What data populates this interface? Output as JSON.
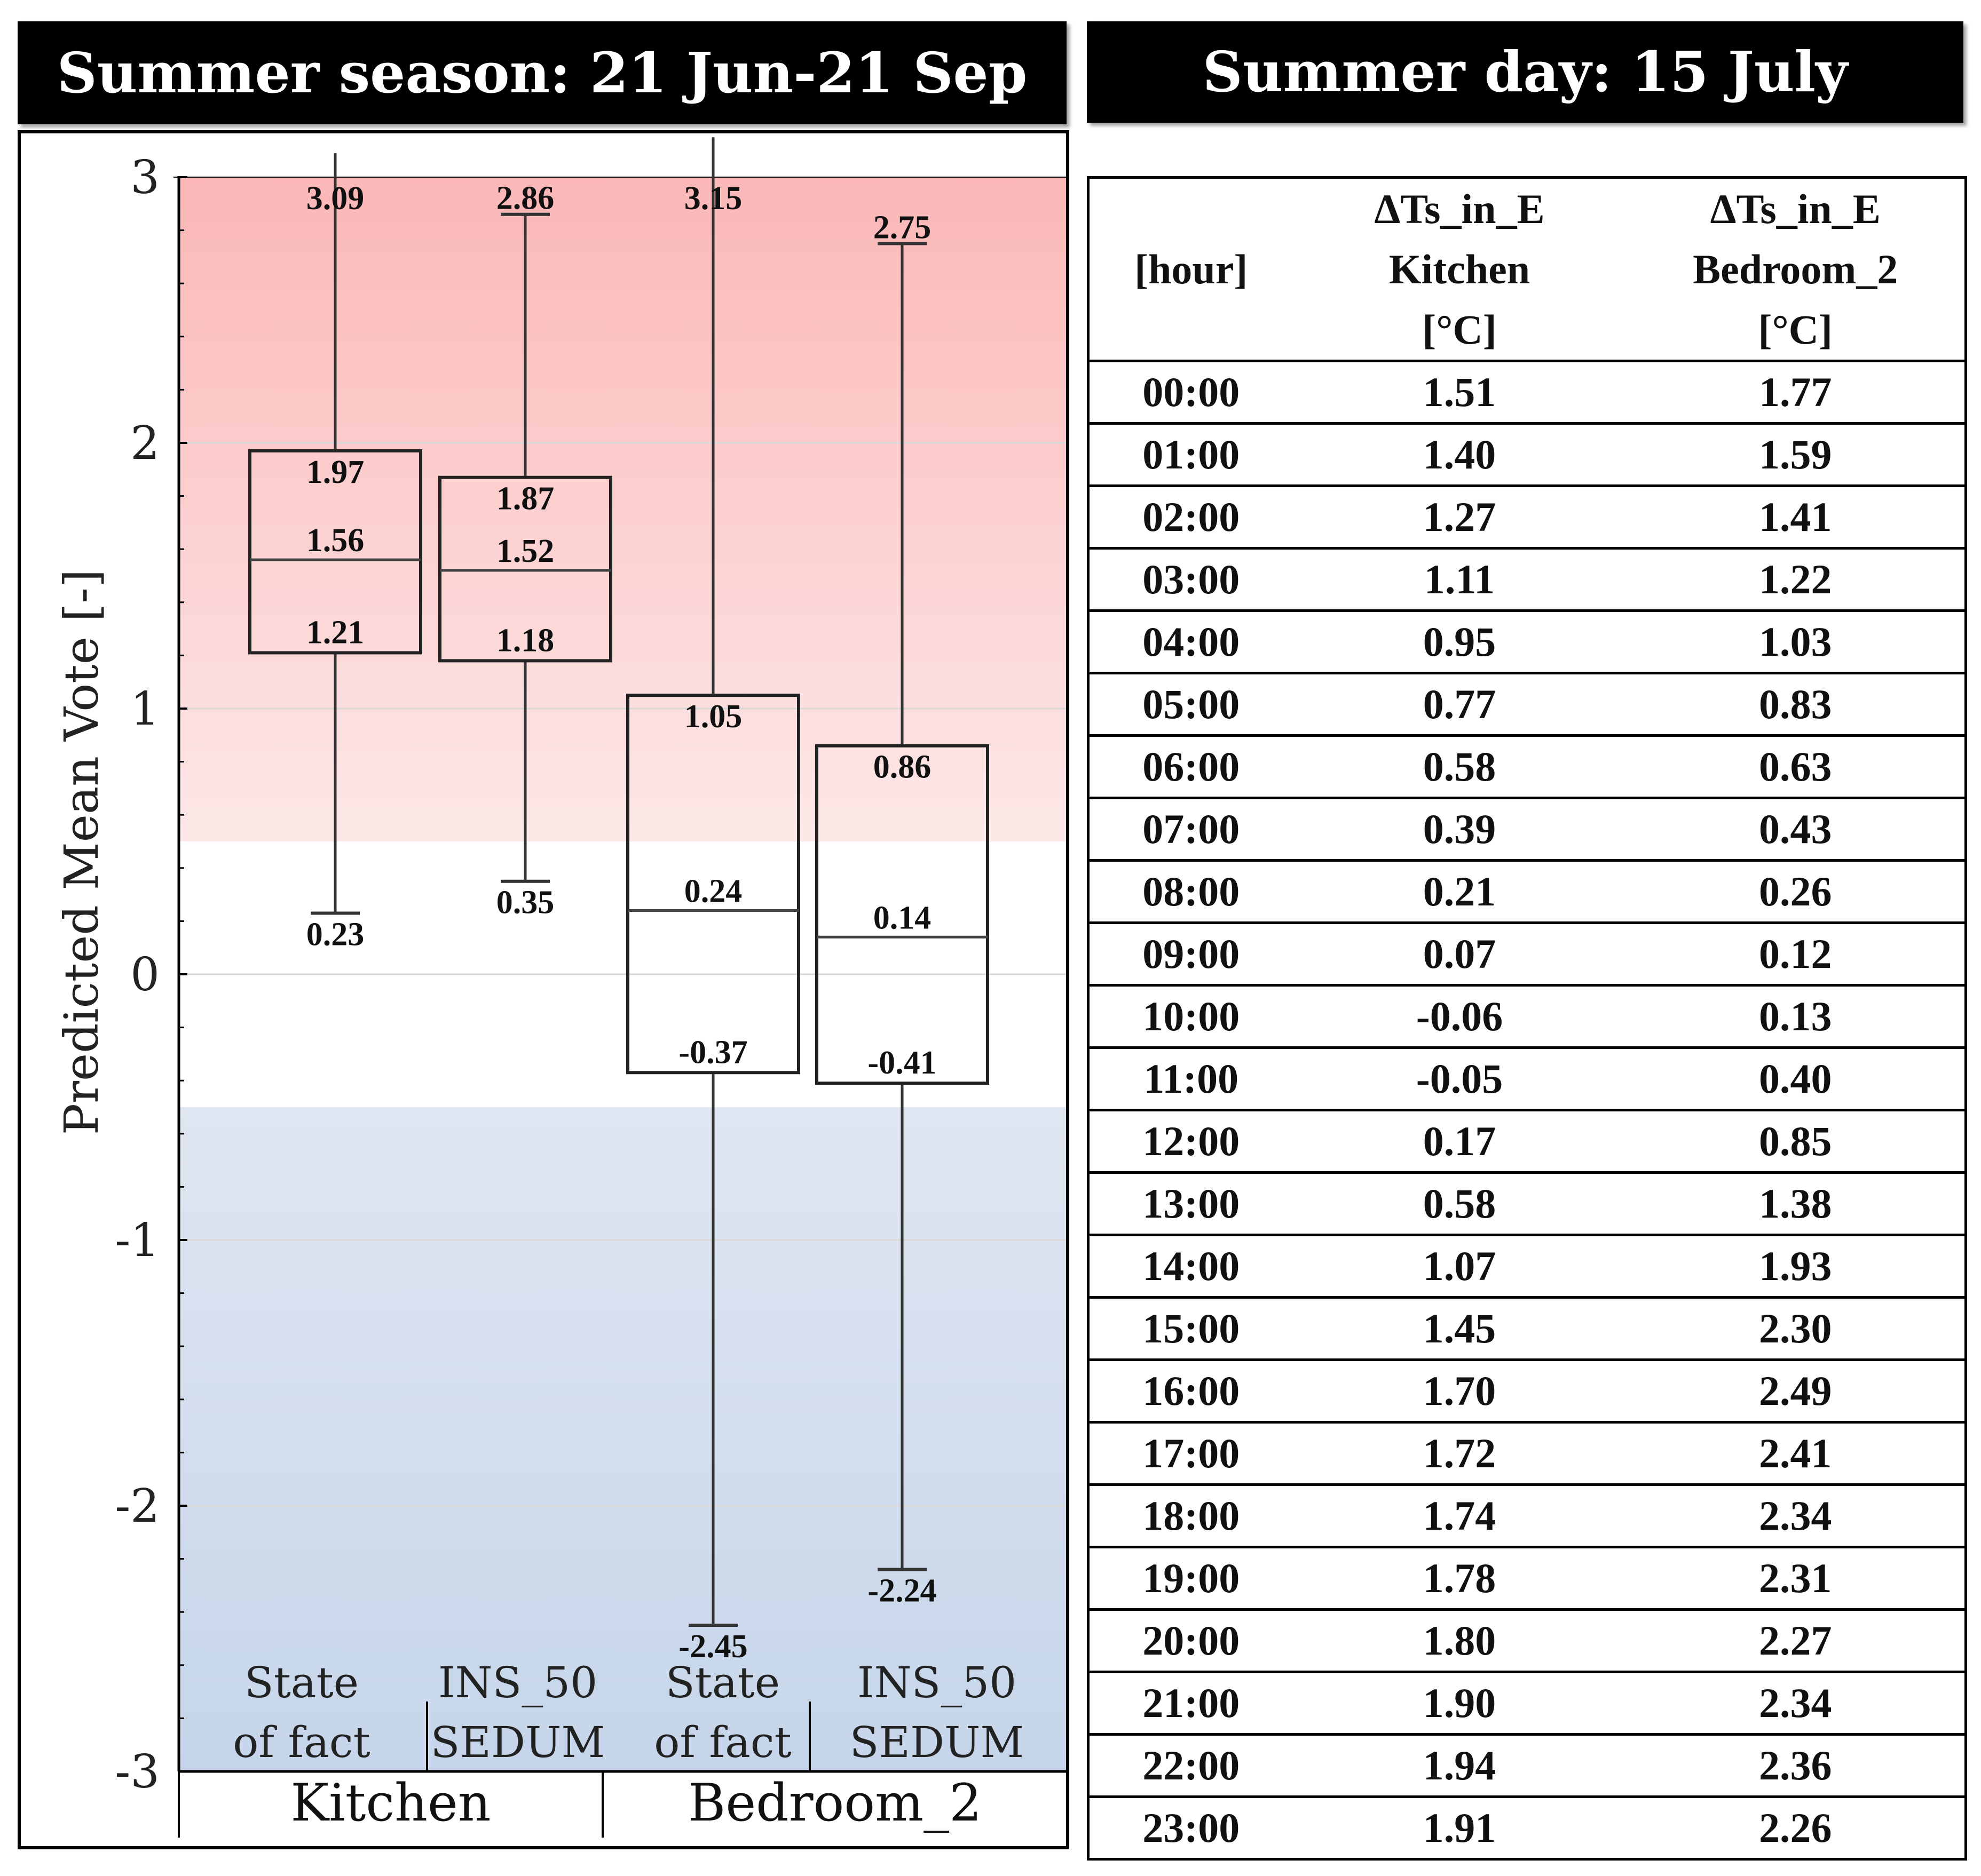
{
  "banners": {
    "left": "Summer season: 21 Jun-21 Sep",
    "right": "Summer day: 15 July"
  },
  "chart_data": {
    "type": "boxplot",
    "ylabel": "Predicted Mean Vote  [-]",
    "ylim": [
      -3,
      3
    ],
    "yticks": [
      3,
      2,
      1,
      0,
      -1,
      -2,
      -3
    ],
    "ytick_labels": [
      "3",
      "2",
      "1",
      "0",
      "-1",
      "-2",
      "-3"
    ],
    "bands": [
      {
        "name": "warm",
        "from": 0.5,
        "to": 3,
        "color_top": "#fbb7b7",
        "color_bottom": "#fde8e8"
      },
      {
        "name": "cool",
        "from": -3,
        "to": -0.5,
        "color_top": "#dfe6f1",
        "color_bottom": "#c6d5ea"
      }
    ],
    "groups": [
      "Kitchen",
      "Bedroom_2"
    ],
    "category_labels": [
      [
        "State",
        "of fact"
      ],
      [
        "INS_50",
        "SEDUM"
      ],
      [
        "State",
        "of fact"
      ],
      [
        "INS_50",
        "SEDUM"
      ]
    ],
    "boxes": [
      {
        "group": "Kitchen",
        "scenario": "State of fact",
        "whisker_high": 3.09,
        "q3": 1.97,
        "median": 1.56,
        "q1": 1.21,
        "whisker_low": 0.23
      },
      {
        "group": "Kitchen",
        "scenario": "INS_50 SEDUM",
        "whisker_high": 2.86,
        "q3": 1.87,
        "median": 1.52,
        "q1": 1.18,
        "whisker_low": 0.35
      },
      {
        "group": "Bedroom_2",
        "scenario": "State of fact",
        "whisker_high": 3.15,
        "q3": 1.05,
        "median": 0.24,
        "q1": -0.37,
        "whisker_low": -2.45
      },
      {
        "group": "Bedroom_2",
        "scenario": "INS_50 SEDUM",
        "whisker_high": 2.75,
        "q3": 0.86,
        "median": 0.14,
        "q1": -0.41,
        "whisker_low": -2.24
      }
    ],
    "value_labels": [
      [
        "3.09",
        "1.97",
        "1.56",
        "1.21",
        "0.23"
      ],
      [
        "2.86",
        "1.87",
        "1.52",
        "1.18",
        "0.35"
      ],
      [
        "3.15",
        "1.05",
        "0.24",
        "-0.37",
        "-2.45"
      ],
      [
        "2.75",
        "0.86",
        "0.14",
        "-0.41",
        "-2.24"
      ]
    ]
  },
  "table": {
    "headers": [
      [
        "[hour]"
      ],
      [
        "ΔTs_in_E",
        "Kitchen",
        "[°C]"
      ],
      [
        "ΔTs_in_E",
        "Bedroom_2",
        "[°C]"
      ]
    ],
    "rows": [
      [
        "00:00",
        "1.51",
        "1.77"
      ],
      [
        "01:00",
        "1.40",
        "1.59"
      ],
      [
        "02:00",
        "1.27",
        "1.41"
      ],
      [
        "03:00",
        "1.11",
        "1.22"
      ],
      [
        "04:00",
        "0.95",
        "1.03"
      ],
      [
        "05:00",
        "0.77",
        "0.83"
      ],
      [
        "06:00",
        "0.58",
        "0.63"
      ],
      [
        "07:00",
        "0.39",
        "0.43"
      ],
      [
        "08:00",
        "0.21",
        "0.26"
      ],
      [
        "09:00",
        "0.07",
        "0.12"
      ],
      [
        "10:00",
        "-0.06",
        "0.13"
      ],
      [
        "11:00",
        "-0.05",
        "0.40"
      ],
      [
        "12:00",
        "0.17",
        "0.85"
      ],
      [
        "13:00",
        "0.58",
        "1.38"
      ],
      [
        "14:00",
        "1.07",
        "1.93"
      ],
      [
        "15:00",
        "1.45",
        "2.30"
      ],
      [
        "16:00",
        "1.70",
        "2.49"
      ],
      [
        "17:00",
        "1.72",
        "2.41"
      ],
      [
        "18:00",
        "1.74",
        "2.34"
      ],
      [
        "19:00",
        "1.78",
        "2.31"
      ],
      [
        "20:00",
        "1.80",
        "2.27"
      ],
      [
        "21:00",
        "1.90",
        "2.34"
      ],
      [
        "22:00",
        "1.94",
        "2.36"
      ],
      [
        "23:00",
        "1.91",
        "2.26"
      ]
    ]
  }
}
